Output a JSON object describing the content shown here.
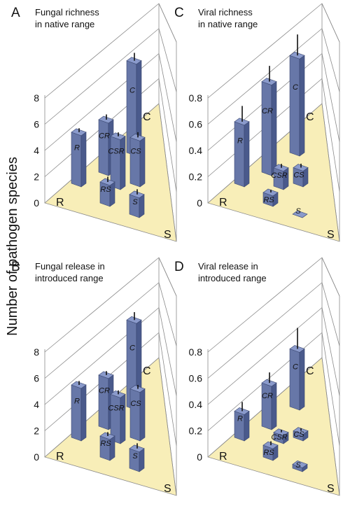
{
  "y_axis_label": "Number of pathogen species",
  "colors": {
    "bar_front": "#6777a8",
    "bar_side": "#4a5a8c",
    "bar_top": "#8a9acb",
    "base": "#f8eeb8",
    "grid": "#8a8a8a",
    "error": "#111111"
  },
  "vertex_labels": {
    "R": "R",
    "C": "C",
    "S": "S"
  },
  "chart_data": [
    {
      "panel": "A",
      "title": [
        "Fungal richness",
        "in native range"
      ],
      "type": "bar",
      "ticks": [
        "0",
        "2",
        "4",
        "6",
        "8"
      ],
      "ylim": [
        0,
        8
      ],
      "categories": [
        "CR",
        "C",
        "R",
        "CSR",
        "CS",
        "RS",
        "S"
      ],
      "values": [
        4.0,
        7.0,
        3.9,
        3.8,
        3.5,
        1.6,
        1.5
      ],
      "errors": [
        0.4,
        0.6,
        0.3,
        0.3,
        0.4,
        0.4,
        0.4
      ]
    },
    {
      "panel": "C",
      "title": [
        "Viral richness",
        "in native range"
      ],
      "type": "bar",
      "ticks": [
        "0",
        "0.2",
        "0.4",
        "0.6",
        "0.8"
      ],
      "ylim": [
        0,
        0.8
      ],
      "categories": [
        "CR",
        "C",
        "R",
        "CSR",
        "CS",
        "RS",
        "S"
      ],
      "values": [
        0.69,
        0.74,
        0.47,
        0.14,
        0.12,
        0.08,
        0.0
      ],
      "errors": [
        0.12,
        0.16,
        0.12,
        0.03,
        0.03,
        0.02,
        0.0
      ]
    },
    {
      "panel": "B",
      "title": [
        "Fungal release in",
        "introduced range"
      ],
      "type": "bar",
      "ticks": [
        "0",
        "2",
        "4",
        "6",
        "8"
      ],
      "ylim": [
        0,
        8
      ],
      "categories": [
        "CR",
        "C",
        "R",
        "CSR",
        "CS",
        "RS",
        "S"
      ],
      "values": [
        3.9,
        6.6,
        4.0,
        3.5,
        3.7,
        1.6,
        1.5
      ],
      "errors": [
        0.3,
        0.6,
        0.3,
        0.3,
        0.3,
        0.3,
        0.4
      ]
    },
    {
      "panel": "D",
      "title": [
        "Viral release in",
        "introduced range"
      ],
      "type": "bar",
      "ticks": [
        "0",
        "0.2",
        "0.4",
        "0.6",
        "0.8"
      ],
      "ylim": [
        0,
        0.8
      ],
      "categories": [
        "CR",
        "C",
        "R",
        "CSR",
        "CS",
        "RS",
        "S"
      ],
      "values": [
        0.33,
        0.44,
        0.2,
        0.06,
        0.05,
        0.09,
        0.03
      ],
      "errors": [
        0.08,
        0.16,
        0.07,
        0.02,
        0.02,
        0.03,
        0.0
      ]
    }
  ]
}
